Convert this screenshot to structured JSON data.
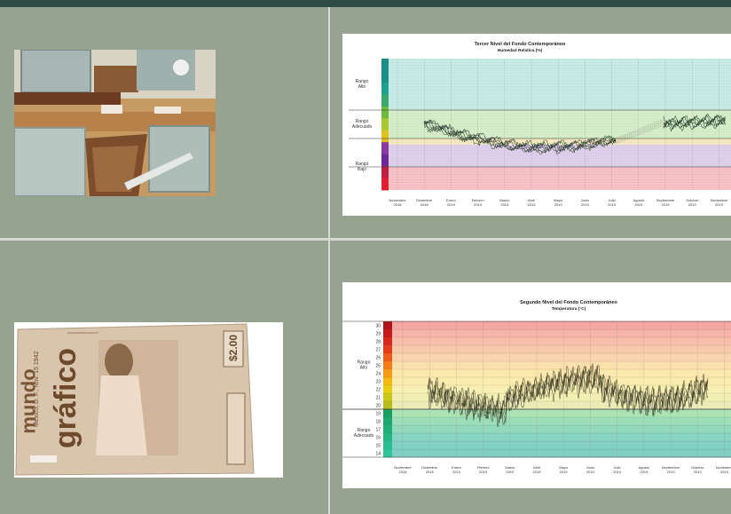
{
  "photos": {
    "top_alt": "",
    "bottom_cover": {
      "title_line1": "mundo",
      "title_line2": "gráfico",
      "price": "$2.00",
      "date_text": "México, D. F., Nov. 15 1942"
    }
  },
  "charts": [
    {
      "title": "Tercer Nivel del Fondo Contemporáneo",
      "subtitle": "Humedad Relativa (%)",
      "ranges": [
        "Rango Alto",
        "Rango Adecuado",
        "Rango Bajo"
      ],
      "months": [
        [
          "Noviembre",
          "2018"
        ],
        [
          "Diciembre",
          "2018"
        ],
        [
          "Enero",
          "2019"
        ],
        [
          "Febrero",
          "2019"
        ],
        [
          "Marzo",
          "2019"
        ],
        [
          "Abril",
          "2019"
        ],
        [
          "Mayo",
          "2019"
        ],
        [
          "Junio",
          "2019"
        ],
        [
          "Julio",
          "2019"
        ],
        [
          "Agosto",
          "2019"
        ],
        [
          "Septiembre",
          "2019"
        ],
        [
          "Octubre",
          "2019"
        ],
        [
          "Noviembre",
          "2019"
        ]
      ]
    },
    {
      "title": "Segundo Nivel del Fondo Contemporáneo",
      "subtitle": "Temperatura (°C)",
      "ranges": [
        "Rango Alto",
        "Rango Adecuado"
      ],
      "yticks": [
        "30",
        "29",
        "28",
        "27",
        "26",
        "25",
        "24",
        "23",
        "22",
        "21",
        "20",
        "19",
        "18",
        "17",
        "16",
        "15",
        "14"
      ],
      "months": [
        [
          "Noviembre",
          "2018"
        ],
        [
          "Diciembre",
          "2018"
        ],
        [
          "Enero",
          "2019"
        ],
        [
          "Febrero",
          "2019"
        ],
        [
          "Marzo",
          "2019"
        ],
        [
          "Abril",
          "2019"
        ],
        [
          "Mayo",
          "2019"
        ],
        [
          "Junio",
          "2019"
        ],
        [
          "Julio",
          "2019"
        ],
        [
          "Agosto",
          "2019"
        ],
        [
          "Septiembre",
          "2019"
        ],
        [
          "Octubre",
          "2019"
        ],
        [
          "Noviembre",
          "2019"
        ]
      ]
    }
  ],
  "colors": {
    "background": "#95a08f",
    "topbar": "#2f4d45",
    "divider": "#d6d9d2"
  }
}
